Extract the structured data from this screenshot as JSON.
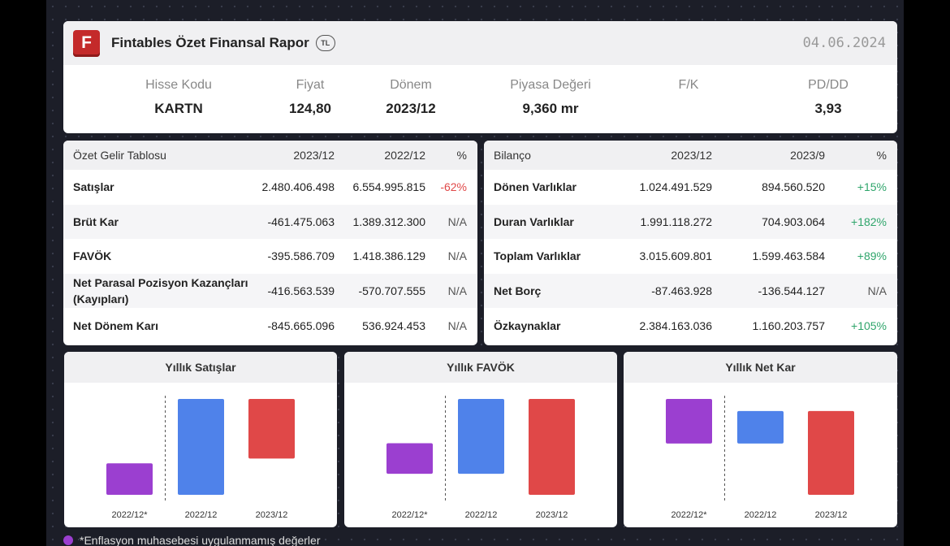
{
  "header": {
    "logo_letter": "F",
    "title": "Fintables Özet Finansal Rapor",
    "currency": "TL",
    "date": "04.06.2024"
  },
  "metrics": [
    {
      "label": "Hisse Kodu",
      "value": "KARTN"
    },
    {
      "label": "Fiyat",
      "value": "124,80"
    },
    {
      "label": "Dönem",
      "value": "2023/12"
    },
    {
      "label": "Piyasa Değeri",
      "value": "9,360 mr"
    },
    {
      "label": "F/K",
      "value": ""
    },
    {
      "label": "PD/DD",
      "value": "3,93"
    }
  ],
  "income": {
    "headers": [
      "Özet Gelir Tablosu",
      "2023/12",
      "2022/12",
      "%"
    ],
    "rows": [
      {
        "name": "Satışlar",
        "a": "2.480.406.498",
        "b": "6.554.995.815",
        "pct": "-62%"
      },
      {
        "name": "Brüt Kar",
        "a": "-461.475.063",
        "b": "1.389.312.300",
        "pct": "N/A"
      },
      {
        "name": "FAVÖK",
        "a": "-395.586.709",
        "b": "1.418.386.129",
        "pct": "N/A"
      },
      {
        "name": "Net Parasal Pozisyon Kazançları (Kayıpları)",
        "a": "-416.563.539",
        "b": "-570.707.555",
        "pct": "N/A"
      },
      {
        "name": "Net Dönem Karı",
        "a": "-845.665.096",
        "b": "536.924.453",
        "pct": "N/A"
      }
    ]
  },
  "balance": {
    "headers": [
      "Bilanço",
      "2023/12",
      "2023/9",
      "%"
    ],
    "rows": [
      {
        "name": "Dönen Varlıklar",
        "a": "1.024.491.529",
        "b": "894.560.520",
        "pct": "+15%"
      },
      {
        "name": "Duran Varlıklar",
        "a": "1.991.118.272",
        "b": "704.903.064",
        "pct": "+182%"
      },
      {
        "name": "Toplam Varlıklar",
        "a": "3.015.609.801",
        "b": "1.599.463.584",
        "pct": "+89%"
      },
      {
        "name": "Net Borç",
        "a": "-87.463.928",
        "b": "-136.544.127",
        "pct": "N/A"
      },
      {
        "name": "Özkaynaklar",
        "a": "2.384.163.036",
        "b": "1.160.203.757",
        "pct": "+105%"
      }
    ]
  },
  "colors": {
    "inflation_unadjusted": "#9b3fd0",
    "base": "#4f82ea",
    "negative": "#e04848"
  },
  "chart_data": [
    {
      "type": "bar",
      "title": "Yıllık Satışlar",
      "categories": [
        "2022/12*",
        "2022/12",
        "2023/12"
      ],
      "values": [
        2.15,
        6.55,
        2.48
      ],
      "unit": "billion TL (approx.)",
      "ylim": [
        0,
        6.55
      ],
      "divider_after_index": 0
    },
    {
      "type": "bar",
      "title": "Yıllık FAVÖK",
      "categories": [
        "2022/12*",
        "2022/12",
        "2023/12"
      ],
      "values": [
        0.58,
        1.42,
        -0.4
      ],
      "unit": "billion TL (approx.)",
      "ylim": [
        -0.4,
        1.42
      ],
      "divider_after_index": 0
    },
    {
      "type": "bar",
      "title": "Yıllık Net Kar",
      "categories": [
        "2022/12*",
        "2022/12",
        "2023/12"
      ],
      "values": [
        0.74,
        0.54,
        -0.85
      ],
      "unit": "billion TL (approx.)",
      "ylim": [
        -0.85,
        0.74
      ],
      "divider_after_index": 0
    }
  ],
  "footnote": "*Enflasyon muhasebesi uygulanmamış değerler"
}
